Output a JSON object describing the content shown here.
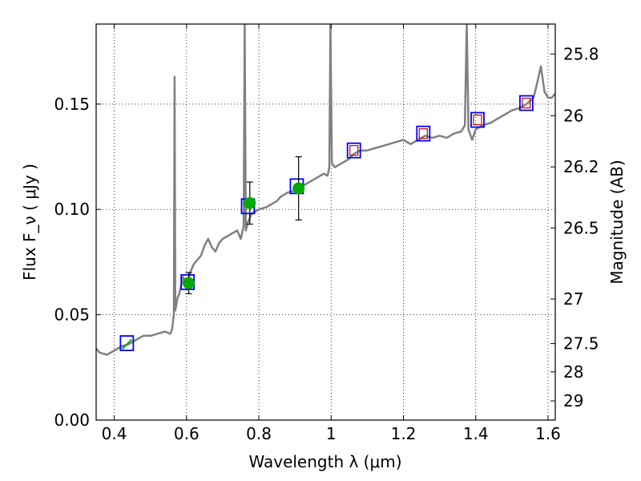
{
  "chart_data": {
    "type": "line",
    "xlabel": "Wavelength  λ (μm)",
    "ylabel": "Flux  F_ν  ( μJy )",
    "y2label": "Magnitude (AB)",
    "xlim": [
      0.35,
      1.62
    ],
    "ylim": [
      0.0,
      0.188
    ],
    "grid": true,
    "x_ticks": [
      {
        "value": 0.4,
        "label": "0.4"
      },
      {
        "value": 0.6,
        "label": "0.6"
      },
      {
        "value": 0.8,
        "label": "0.8"
      },
      {
        "value": 1.0,
        "label": "1"
      },
      {
        "value": 1.2,
        "label": "1.2"
      },
      {
        "value": 1.4,
        "label": "1.4"
      },
      {
        "value": 1.6,
        "label": "1.6"
      }
    ],
    "y_ticks": [
      {
        "value": 0.0,
        "label": "0.00"
      },
      {
        "value": 0.05,
        "label": "0.05"
      },
      {
        "value": 0.1,
        "label": "0.10"
      },
      {
        "value": 0.15,
        "label": "0.15"
      }
    ],
    "y2_ticks": [
      {
        "flux": 0.1738,
        "label": "25.8"
      },
      {
        "flux": 0.1445,
        "label": "26"
      },
      {
        "flux": 0.1202,
        "label": "26.2"
      },
      {
        "flux": 0.0912,
        "label": "26.5"
      },
      {
        "flux": 0.0575,
        "label": "27"
      },
      {
        "flux": 0.0363,
        "label": "27.5"
      },
      {
        "flux": 0.0229,
        "label": "28"
      },
      {
        "flux": 0.0091,
        "label": "29"
      }
    ],
    "spectrum_color": "#808080",
    "spectrum": [
      [
        0.35,
        0.034
      ],
      [
        0.36,
        0.032
      ],
      [
        0.38,
        0.031
      ],
      [
        0.4,
        0.033
      ],
      [
        0.42,
        0.035
      ],
      [
        0.44,
        0.036
      ],
      [
        0.46,
        0.038
      ],
      [
        0.48,
        0.04
      ],
      [
        0.5,
        0.04
      ],
      [
        0.52,
        0.041
      ],
      [
        0.54,
        0.042
      ],
      [
        0.555,
        0.041
      ],
      [
        0.56,
        0.043
      ],
      [
        0.565,
        0.05
      ],
      [
        0.567,
        0.163
      ],
      [
        0.569,
        0.052
      ],
      [
        0.575,
        0.058
      ],
      [
        0.58,
        0.06
      ],
      [
        0.59,
        0.068
      ],
      [
        0.6,
        0.065
      ],
      [
        0.605,
        0.066
      ],
      [
        0.61,
        0.07
      ],
      [
        0.62,
        0.074
      ],
      [
        0.64,
        0.078
      ],
      [
        0.65,
        0.083
      ],
      [
        0.66,
        0.086
      ],
      [
        0.67,
        0.082
      ],
      [
        0.68,
        0.08
      ],
      [
        0.69,
        0.084
      ],
      [
        0.7,
        0.086
      ],
      [
        0.72,
        0.088
      ],
      [
        0.74,
        0.09
      ],
      [
        0.75,
        0.086
      ],
      [
        0.758,
        0.092
      ],
      [
        0.761,
        0.188
      ],
      [
        0.764,
        0.09
      ],
      [
        0.77,
        0.094
      ],
      [
        0.78,
        0.098
      ],
      [
        0.79,
        0.099
      ],
      [
        0.8,
        0.1
      ],
      [
        0.82,
        0.101
      ],
      [
        0.84,
        0.103
      ],
      [
        0.85,
        0.104
      ],
      [
        0.86,
        0.106
      ],
      [
        0.88,
        0.108
      ],
      [
        0.9,
        0.109
      ],
      [
        0.91,
        0.11
      ],
      [
        0.92,
        0.111
      ],
      [
        0.94,
        0.113
      ],
      [
        0.96,
        0.115
      ],
      [
        0.98,
        0.117
      ],
      [
        0.99,
        0.116
      ],
      [
        0.995,
        0.12
      ],
      [
        0.998,
        0.188
      ],
      [
        1.002,
        0.122
      ],
      [
        1.01,
        0.12
      ],
      [
        1.03,
        0.122
      ],
      [
        1.05,
        0.124
      ],
      [
        1.06,
        0.126
      ],
      [
        1.08,
        0.128
      ],
      [
        1.1,
        0.128
      ],
      [
        1.12,
        0.129
      ],
      [
        1.14,
        0.13
      ],
      [
        1.16,
        0.131
      ],
      [
        1.18,
        0.132
      ],
      [
        1.2,
        0.133
      ],
      [
        1.22,
        0.131
      ],
      [
        1.24,
        0.133
      ],
      [
        1.26,
        0.135
      ],
      [
        1.28,
        0.134
      ],
      [
        1.3,
        0.135
      ],
      [
        1.32,
        0.134
      ],
      [
        1.34,
        0.136
      ],
      [
        1.36,
        0.137
      ],
      [
        1.37,
        0.14
      ],
      [
        1.375,
        0.188
      ],
      [
        1.38,
        0.138
      ],
      [
        1.39,
        0.133
      ],
      [
        1.4,
        0.138
      ],
      [
        1.42,
        0.14
      ],
      [
        1.44,
        0.141
      ],
      [
        1.46,
        0.143
      ],
      [
        1.48,
        0.145
      ],
      [
        1.5,
        0.147
      ],
      [
        1.52,
        0.148
      ],
      [
        1.54,
        0.15
      ],
      [
        1.56,
        0.153
      ],
      [
        1.57,
        0.16
      ],
      [
        1.58,
        0.168
      ],
      [
        1.59,
        0.156
      ],
      [
        1.6,
        0.153
      ],
      [
        1.61,
        0.153
      ],
      [
        1.62,
        0.155
      ]
    ],
    "model_points": [
      {
        "x": 0.435,
        "y": 0.0365
      },
      {
        "x": 0.603,
        "y": 0.0655
      },
      {
        "x": 0.77,
        "y": 0.1015
      },
      {
        "x": 0.905,
        "y": 0.111
      },
      {
        "x": 1.063,
        "y": 0.128
      },
      {
        "x": 1.255,
        "y": 0.136
      },
      {
        "x": 1.405,
        "y": 0.1425
      },
      {
        "x": 1.54,
        "y": 0.1505
      }
    ],
    "observed_points": [
      {
        "x": 0.435,
        "y": 0.036,
        "err": null
      },
      {
        "x": 0.606,
        "y": 0.065,
        "err": 0.005
      },
      {
        "x": 0.775,
        "y": 0.103,
        "err": 0.01
      },
      {
        "x": 0.91,
        "y": 0.11,
        "err": 0.015
      }
    ],
    "upper_limits": [
      {
        "x": 1.063,
        "y": 0.128
      },
      {
        "x": 1.255,
        "y": 0.136
      },
      {
        "x": 1.405,
        "y": 0.1425
      },
      {
        "x": 1.54,
        "y": 0.1505
      }
    ],
    "colors": {
      "model_box": "#0000ff",
      "observed": "#00aa00",
      "upper_limit": "#cc0000",
      "errorbar": "#000000"
    }
  }
}
